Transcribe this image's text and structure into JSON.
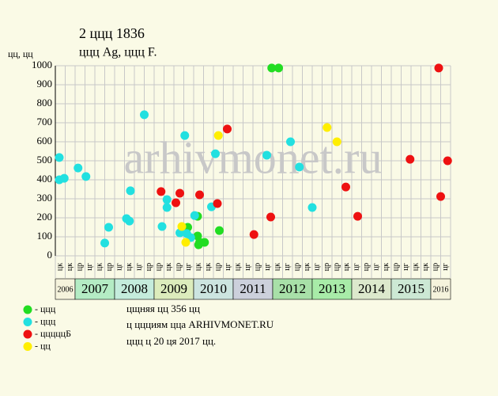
{
  "chart_data": {
    "type": "scatter",
    "title": "2 ццц 1836",
    "subtitle": "ццц Ag, ццц F.",
    "y_label": "цц, цц",
    "watermark": "arhivmonet.ru",
    "notes": [
      "цщняя цц 356 цц",
      "ц ццциям цца ARHIVMONET.RU",
      "ццц ц 20 ця 2017 цц."
    ],
    "ylim": [
      0,
      1000
    ],
    "yticks": [
      0,
      100,
      200,
      300,
      400,
      500,
      600,
      700,
      800,
      900,
      1000
    ],
    "xlim": [
      0,
      40
    ],
    "grid": true,
    "columns": [
      "цк",
      "цк",
      "цр",
      "цг",
      "цк",
      "цр",
      "цг",
      "цк",
      "цг",
      "цр",
      "цр",
      "цк",
      "цр",
      "цг",
      "цк",
      "цк",
      "цр",
      "цг",
      "цк",
      "цг",
      "цр",
      "цг",
      "цк",
      "цг",
      "цр",
      "цк",
      "цг",
      "цр",
      "цр",
      "цк",
      "цг",
      "цр",
      "цг",
      "цк",
      "цр",
      "цг",
      "цк",
      "цк",
      "цр",
      "цг"
    ],
    "years": [
      {
        "label": "2006",
        "span": 2,
        "color": "#f5f3dc"
      },
      {
        "label": "2007",
        "span": 4,
        "color": "#b4ecc4"
      },
      {
        "label": "2008",
        "span": 4,
        "color": "#c4ecdc"
      },
      {
        "label": "2009",
        "span": 4,
        "color": "#dcecbc"
      },
      {
        "label": "2010",
        "span": 4,
        "color": "#cce4e0"
      },
      {
        "label": "2011",
        "span": 4,
        "color": "#ccd0dc"
      },
      {
        "label": "2012",
        "span": 4,
        "color": "#a8e0a8"
      },
      {
        "label": "2013",
        "span": 4,
        "color": "#a8eca8"
      },
      {
        "label": "2014",
        "span": 4,
        "color": "#dce8cc"
      },
      {
        "label": "2015",
        "span": 4,
        "color": "#cce8d4"
      },
      {
        "label": "2016",
        "span": 2,
        "color": "#f5f3dc"
      }
    ],
    "series": [
      {
        "name": "- ццц",
        "color": "#22dd22",
        "x": [
          14.4,
          14.4,
          14.5,
          14.6,
          15.1,
          16.6,
          13.4,
          21.9,
          22.6
        ],
        "values": [
          208,
          104,
          58,
          71,
          71,
          133,
          150,
          988,
          988
        ]
      },
      {
        "name": "- ццц",
        "color": "#22e0e0",
        "x": [
          0.4,
          0.4,
          0.9,
          2.3,
          3.1,
          5.0,
          5.4,
          7.2,
          7.5,
          7.6,
          9.0,
          10.8,
          11.3,
          11.3,
          12.6,
          13.1,
          13.3,
          13.7,
          14.1,
          15.8,
          16.2,
          21.4,
          23.8,
          24.7,
          26.0
        ],
        "values": [
          517,
          400,
          408,
          462,
          417,
          67,
          150,
          196,
          183,
          342,
          742,
          154,
          296,
          254,
          121,
          633,
          117,
          96,
          212,
          258,
          537,
          529,
          600,
          467,
          254
        ]
      },
      {
        "name": "- цццццБ",
        "color": "#ee1111",
        "x": [
          10.7,
          12.2,
          12.6,
          14.6,
          16.4,
          17.4,
          20.1,
          21.8,
          29.4,
          30.6,
          35.9,
          38.8,
          39.0,
          39.7
        ],
        "values": [
          338,
          279,
          329,
          321,
          275,
          667,
          112,
          204,
          362,
          208,
          508,
          988,
          312,
          500
        ]
      },
      {
        "name": "- цц",
        "color": "#ffee00",
        "x": [
          12.8,
          13.2,
          16.5,
          27.5,
          28.5
        ],
        "values": [
          154,
          71,
          633,
          675,
          600
        ]
      }
    ]
  }
}
